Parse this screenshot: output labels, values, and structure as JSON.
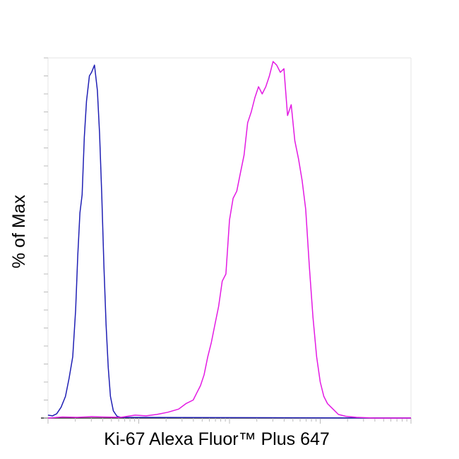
{
  "chart_data": {
    "type": "line",
    "xlabel": "Ki-67 Alexa Fluor™ Plus 647",
    "ylabel": "% of Max",
    "xlim": [
      0,
      1
    ],
    "ylim": [
      0,
      100
    ],
    "grid": false,
    "series": [
      {
        "color": "#1f1fb4",
        "points": [
          [
            0.0,
            0.8
          ],
          [
            0.012,
            0.6
          ],
          [
            0.024,
            1.2
          ],
          [
            0.036,
            3.0
          ],
          [
            0.048,
            6.0
          ],
          [
            0.058,
            11.0
          ],
          [
            0.068,
            17.0
          ],
          [
            0.076,
            30.0
          ],
          [
            0.082,
            45.0
          ],
          [
            0.088,
            57.0
          ],
          [
            0.094,
            62.0
          ],
          [
            0.1,
            78.0
          ],
          [
            0.106,
            88.0
          ],
          [
            0.114,
            95.0
          ],
          [
            0.12,
            96.0
          ],
          [
            0.128,
            98.0
          ],
          [
            0.136,
            91.0
          ],
          [
            0.142,
            79.0
          ],
          [
            0.148,
            62.0
          ],
          [
            0.154,
            42.0
          ],
          [
            0.16,
            26.0
          ],
          [
            0.166,
            14.0
          ],
          [
            0.172,
            6.0
          ],
          [
            0.18,
            2.0
          ],
          [
            0.19,
            0.5
          ],
          [
            0.2,
            0.2
          ],
          [
            1.0,
            0.0
          ]
        ]
      },
      {
        "color": "#e31ae3",
        "points": [
          [
            0.0,
            0.0
          ],
          [
            0.04,
            0.3
          ],
          [
            0.08,
            0.2
          ],
          [
            0.12,
            0.4
          ],
          [
            0.15,
            0.3
          ],
          [
            0.2,
            0.2
          ],
          [
            0.24,
            0.8
          ],
          [
            0.27,
            0.6
          ],
          [
            0.3,
            1.0
          ],
          [
            0.33,
            1.6
          ],
          [
            0.36,
            2.5
          ],
          [
            0.38,
            4.0
          ],
          [
            0.4,
            5.0
          ],
          [
            0.41,
            7.0
          ],
          [
            0.42,
            9.0
          ],
          [
            0.43,
            12.0
          ],
          [
            0.44,
            17.0
          ],
          [
            0.45,
            21.0
          ],
          [
            0.46,
            26.0
          ],
          [
            0.47,
            31.0
          ],
          [
            0.48,
            38.0
          ],
          [
            0.49,
            40.0
          ],
          [
            0.5,
            55.0
          ],
          [
            0.51,
            61.0
          ],
          [
            0.52,
            63.0
          ],
          [
            0.53,
            68.0
          ],
          [
            0.54,
            73.0
          ],
          [
            0.55,
            82.0
          ],
          [
            0.56,
            85.0
          ],
          [
            0.57,
            89.0
          ],
          [
            0.58,
            92.0
          ],
          [
            0.59,
            90.0
          ],
          [
            0.6,
            92.0
          ],
          [
            0.61,
            95.0
          ],
          [
            0.62,
            99.0
          ],
          [
            0.63,
            98.0
          ],
          [
            0.64,
            96.0
          ],
          [
            0.65,
            97.0
          ],
          [
            0.66,
            84.0
          ],
          [
            0.67,
            87.0
          ],
          [
            0.68,
            77.0
          ],
          [
            0.69,
            72.0
          ],
          [
            0.7,
            66.0
          ],
          [
            0.71,
            58.0
          ],
          [
            0.72,
            42.0
          ],
          [
            0.73,
            28.0
          ],
          [
            0.74,
            17.0
          ],
          [
            0.75,
            10.0
          ],
          [
            0.76,
            6.0
          ],
          [
            0.77,
            4.0
          ],
          [
            0.78,
            3.0
          ],
          [
            0.79,
            2.0
          ],
          [
            0.8,
            1.0
          ],
          [
            0.82,
            0.5
          ],
          [
            0.85,
            0.2
          ],
          [
            0.9,
            0.0
          ],
          [
            1.0,
            0.0
          ]
        ]
      }
    ]
  }
}
